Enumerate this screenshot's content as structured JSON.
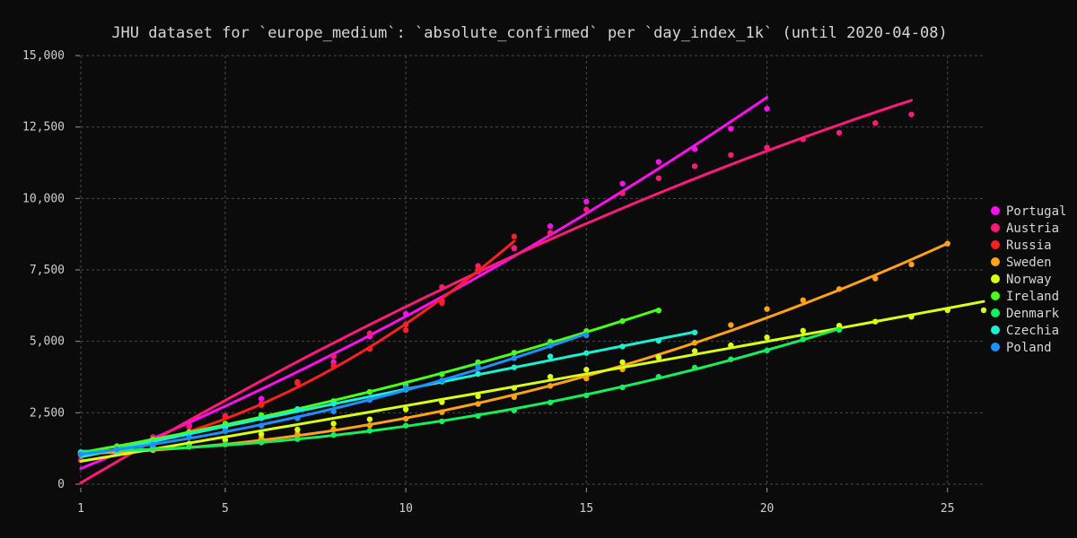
{
  "chart_data": {
    "type": "line",
    "title": "JHU dataset for `europe_medium`: `absolute_confirmed` per `day_index_1k` (until 2020-04-08)",
    "xlabel": "",
    "ylabel": "",
    "xlim": [
      1,
      26
    ],
    "ylim": [
      0,
      15000
    ],
    "x_ticks": [
      1,
      5,
      10,
      15,
      20,
      25
    ],
    "x_tick_labels": [
      "1",
      "5",
      "10",
      "15",
      "20",
      "25"
    ],
    "y_ticks": [
      0,
      2500,
      5000,
      7500,
      10000,
      12500,
      15000
    ],
    "y_tick_labels": [
      "0",
      "2,500",
      "5,000",
      "7,500",
      "10,000",
      "12,500",
      "15,000"
    ],
    "grid": true,
    "legend_position": "right",
    "series": [
      {
        "name": "Portugal",
        "color": "#ff10f0",
        "x": [
          1,
          2,
          3,
          4,
          5,
          6,
          7,
          8,
          9,
          10,
          11,
          12,
          13,
          14,
          15,
          16,
          17,
          18,
          19,
          20
        ],
        "y": [
          1020,
          1280,
          1600,
          2060,
          2360,
          2990,
          3540,
          4270,
          5170,
          5960,
          6410,
          7440,
          8250,
          9030,
          9890,
          10520,
          11280,
          11730,
          12440,
          13140
        ]
      },
      {
        "name": "Austria",
        "color": "#ff1b78",
        "x": [
          1,
          2,
          3,
          4,
          5,
          6,
          7,
          8,
          9,
          10,
          11,
          12,
          13,
          14,
          15,
          16,
          17,
          18,
          19,
          20,
          21,
          22,
          23,
          24
        ],
        "y": [
          1020,
          1330,
          1650,
          2010,
          2390,
          2810,
          3580,
          4470,
          5280,
          5590,
          6900,
          7640,
          8270,
          8800,
          9610,
          10180,
          10710,
          11130,
          11520,
          11780,
          12070,
          12300,
          12640,
          12940
        ]
      },
      {
        "name": "Russia",
        "color": "#ff2020",
        "x": [
          1,
          2,
          3,
          4,
          5,
          6,
          7,
          8,
          9,
          10,
          11,
          12,
          13
        ],
        "y": [
          840,
          1260,
          1530,
          1840,
          2340,
          2770,
          3550,
          4150,
          4730,
          5390,
          6340,
          7500,
          8670
        ]
      },
      {
        "name": "Sweden",
        "color": "#ffa21a",
        "x": [
          1,
          2,
          3,
          4,
          5,
          6,
          7,
          8,
          9,
          10,
          11,
          12,
          13,
          14,
          15,
          16,
          17,
          18,
          19,
          20,
          21,
          22,
          23,
          24,
          25
        ],
        "y": [
          1060,
          1110,
          1190,
          1310,
          1390,
          1610,
          1760,
          1920,
          2060,
          2290,
          2520,
          2810,
          3050,
          3440,
          3700,
          4020,
          4430,
          4950,
          5570,
          6130,
          6440,
          6830,
          7200,
          7690,
          8420
        ]
      },
      {
        "name": "Norway",
        "color": "#d8ff14",
        "x": [
          1,
          2,
          3,
          4,
          5,
          6,
          7,
          8,
          9,
          10,
          11,
          12,
          13,
          14,
          15,
          16,
          17,
          18,
          19,
          20,
          21,
          22,
          23,
          24,
          25,
          26
        ],
        "y": [
          1090,
          1170,
          1290,
          1420,
          1550,
          1750,
          1910,
          2120,
          2270,
          2620,
          2870,
          3080,
          3370,
          3760,
          4010,
          4270,
          4450,
          4660,
          4860,
          5140,
          5370,
          5550,
          5690,
          5860,
          6090,
          6090
        ]
      },
      {
        "name": "Ireland",
        "color": "#4aff1a",
        "x": [
          1,
          2,
          3,
          4,
          5,
          6,
          7,
          8,
          9,
          10,
          11,
          12,
          13,
          14,
          15,
          16,
          17
        ],
        "y": [
          1090,
          1330,
          1560,
          1820,
          2120,
          2420,
          2620,
          2910,
          3230,
          3450,
          3850,
          4270,
          4600,
          4990,
          5360,
          5710,
          6080
        ]
      },
      {
        "name": "Denmark",
        "color": "#16ee5c",
        "x": [
          1,
          2,
          3,
          4,
          5,
          6,
          7,
          8,
          9,
          10,
          11,
          12,
          13,
          14,
          15,
          16,
          17,
          18,
          19,
          20,
          21,
          22
        ],
        "y": [
          1120,
          1150,
          1260,
          1310,
          1400,
          1460,
          1580,
          1720,
          1870,
          2050,
          2200,
          2390,
          2580,
          2860,
          3110,
          3390,
          3760,
          4080,
          4370,
          4680,
          5070,
          5400
        ]
      },
      {
        "name": "Czechia",
        "color": "#1bf0d0",
        "x": [
          1,
          2,
          3,
          4,
          5,
          6,
          7,
          8,
          9,
          10,
          11,
          12,
          13,
          14,
          15,
          16,
          17,
          18
        ],
        "y": [
          1120,
          1160,
          1430,
          1650,
          1980,
          2310,
          2630,
          2820,
          2990,
          3310,
          3590,
          3860,
          4090,
          4470,
          4590,
          4820,
          5020,
          5310
        ]
      },
      {
        "name": "Poland",
        "color": "#1f8fff",
        "x": [
          1,
          2,
          3,
          4,
          5,
          6,
          7,
          8,
          9,
          10,
          11,
          12,
          13,
          14,
          15
        ],
        "y": [
          1050,
          1220,
          1390,
          1640,
          1860,
          2050,
          2310,
          2550,
          2950,
          3380,
          3630,
          4100,
          4410,
          4850,
          5210
        ]
      }
    ]
  }
}
